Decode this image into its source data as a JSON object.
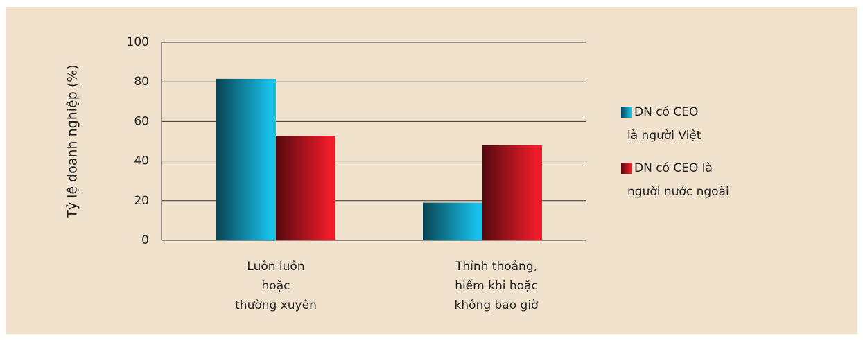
{
  "chart_data": {
    "type": "bar",
    "y_label": "Tỷ lệ doanh nghiệp (%)",
    "categories": [
      [
        "Luôn luôn",
        "hoặc",
        "thường xuyên"
      ],
      [
        "Thỉnh thoảng,",
        "hiếm khi hoặc",
        "không bao giờ"
      ]
    ],
    "series": [
      {
        "name": [
          "DN có CEO",
          "là người Việt"
        ],
        "color": "#18c0e8",
        "values": [
          81.5,
          19
        ]
      },
      {
        "name": [
          "DN có CEO là",
          "người nước ngoài"
        ],
        "color": "#ee1c2a",
        "values": [
          52.8,
          48
        ]
      }
    ],
    "ylim": [
      0,
      100
    ],
    "yticks": [
      0,
      20,
      40,
      60,
      80,
      100
    ],
    "grid": true
  }
}
